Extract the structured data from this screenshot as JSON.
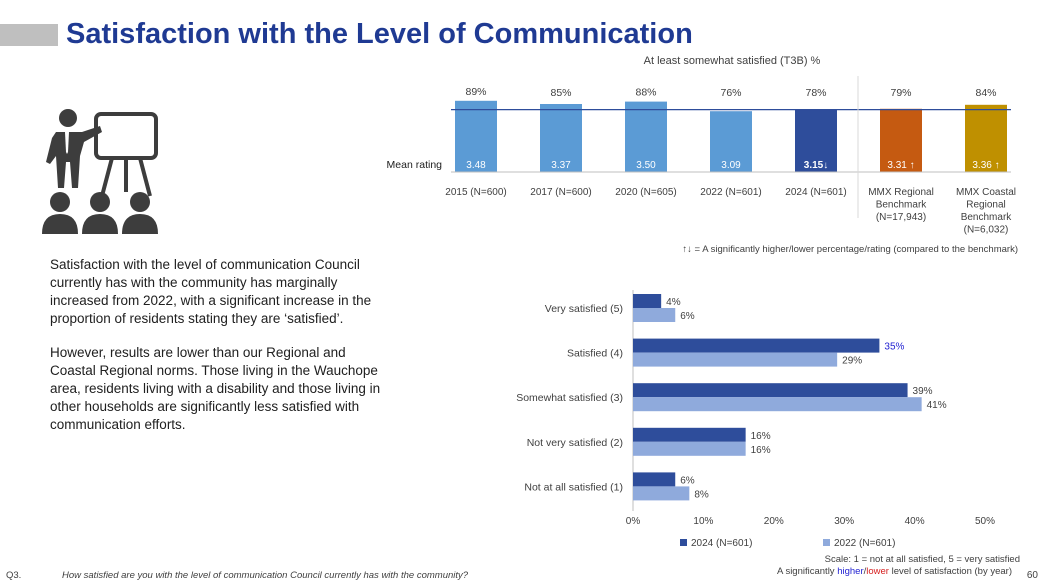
{
  "page": {
    "title": "Satisfaction with the Level of Communication",
    "paragraph_1": "Satisfaction with the level of communication Council currently has with the community has marginally increased from 2022, with a significant increase in the proportion of residents stating they are ‘satisfied’.",
    "paragraph_2": "However, results are lower than our Regional and Coastal Regional norms. Those living in the Wauchope area, residents living with a disability and those living in other households are significantly less satisfied with communication efforts.",
    "question_code": "Q3.",
    "question_text": "How satisfied are you with the level of communication Council currently has with the community?",
    "scale_note": "Scale: 1 = not at all satisfied, 5 = very satisfied",
    "sig_note_prefix": "A significantly ",
    "sig_note_higher": "higher",
    "sig_note_slash": "/",
    "sig_note_lower": "lower",
    "sig_note_suffix": " level of satisfaction (by year)",
    "page_number": "60",
    "icon": "presenter-audience-icon"
  },
  "chart_data": [
    {
      "type": "bar",
      "title": "At least somewhat satisfied (T3B) %",
      "categories": [
        "2015 (N=600)",
        "2017 (N=600)",
        "2020 (N=605)",
        "2022 (N=601)",
        "2024 (N=601)",
        "MMX Regional Benchmark (N=17,943)",
        "MMX Coastal Regional Benchmark (N=6,032)"
      ],
      "values": [
        89,
        85,
        88,
        76,
        78,
        79,
        84
      ],
      "value_labels": [
        "89%",
        "85%",
        "88%",
        "76%",
        "78%",
        "79%",
        "84%"
      ],
      "mean_label": "Mean rating",
      "mean_ratings": [
        "3.48",
        "3.37",
        "3.50",
        "3.09",
        "3.15↓",
        "3.31 ↑",
        "3.36 ↑"
      ],
      "colors": [
        "#5b9bd5",
        "#5b9bd5",
        "#5b9bd5",
        "#5b9bd5",
        "#2e4d9b",
        "#c55a11",
        "#bf9000"
      ],
      "reference_line": 78,
      "footnote": "↑↓ = A significantly higher/lower percentage/rating (compared to the benchmark)"
    },
    {
      "type": "bar",
      "orientation": "horizontal",
      "categories": [
        "Very satisfied (5)",
        "Satisfied (4)",
        "Somewhat satisfied (3)",
        "Not very satisfied (2)",
        "Not at all satisfied (1)"
      ],
      "series": [
        {
          "name": "2024 (N=601)",
          "values": [
            4,
            35,
            39,
            16,
            6
          ],
          "labels": [
            "4%",
            "35%",
            "39%",
            "16%",
            "6%"
          ],
          "color": "#2e4d9b"
        },
        {
          "name": "2022 (N=601)",
          "values": [
            6,
            29,
            41,
            16,
            8
          ],
          "labels": [
            "6%",
            "29%",
            "41%",
            "16%",
            "8%"
          ],
          "color": "#8faadc"
        }
      ],
      "highlight_label_color": "#1f1fd1",
      "xlim": [
        0,
        50
      ],
      "xticks": [
        "0%",
        "10%",
        "20%",
        "30%",
        "40%",
        "50%"
      ],
      "legend_position": "bottom"
    }
  ]
}
